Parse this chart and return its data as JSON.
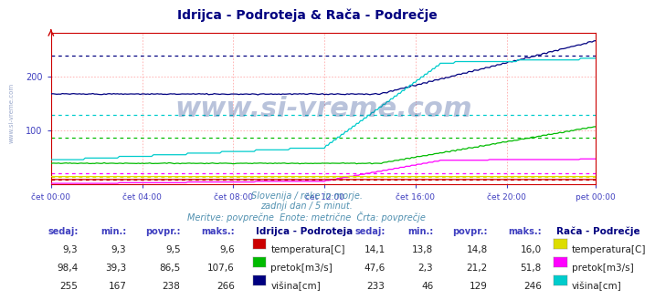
{
  "title": "Idrijca - Podroteja & Rača - Podrečje",
  "title_color": "#000080",
  "subtitle1": "Slovenija / reke in morje.",
  "subtitle2": "zadnji dan / 5 minut.",
  "subtitle3": "Meritve: povprečne  Enote: metrične  Črta: povprečje",
  "bg_color": "#ffffff",
  "plot_bg_color": "#ffffff",
  "watermark": "www.si-vreme.com",
  "tick_color": "#4040c0",
  "n_points": 288,
  "x_tick_labels": [
    "čet 00:00",
    "čet 04:00",
    "čet 08:00",
    "čet 12:00",
    "čet 16:00",
    "čet 20:00",
    "pet 00:00"
  ],
  "x_tick_positions": [
    0,
    48,
    96,
    144,
    192,
    240,
    287
  ],
  "ylim": [
    0,
    280
  ],
  "yticks": [
    100,
    200
  ],
  "idrijca": {
    "label": "Idrijca - Podroteja",
    "temp_color": "#cc0000",
    "pretok_color": "#00bb00",
    "visina_color": "#000080",
    "temp_avg": 9.5,
    "pretok_avg": 86.5,
    "visina_avg": 238,
    "temp_min": 9.3,
    "temp_max": 9.6,
    "temp_sedaj": 9.3,
    "pretok_min": 39.3,
    "pretok_max": 107.6,
    "pretok_sedaj": 98.4,
    "visina_min": 167,
    "visina_max": 266,
    "visina_sedaj": 255
  },
  "raca": {
    "label": "Rača - Podrečje",
    "temp_color": "#dddd00",
    "pretok_color": "#ff00ff",
    "visina_color": "#00cccc",
    "temp_avg": 14.8,
    "pretok_avg": 21.2,
    "visina_avg": 129,
    "temp_min": 13.8,
    "temp_max": 16.0,
    "temp_sedaj": 14.1,
    "pretok_min": 2.3,
    "pretok_max": 51.8,
    "pretok_sedaj": 47.6,
    "visina_min": 46,
    "visina_max": 246,
    "visina_sedaj": 233
  },
  "table_header_color": "#4040c0",
  "col_headers": [
    "sedaj:",
    "min.:",
    "povpr.:",
    "maks.:"
  ],
  "idrijca_rows": [
    [
      "9,3",
      "9,3",
      "9,5",
      "9,6",
      "#cc0000",
      "temperatura[C]"
    ],
    [
      "98,4",
      "39,3",
      "86,5",
      "107,6",
      "#00bb00",
      "pretok[m3/s]"
    ],
    [
      "255",
      "167",
      "238",
      "266",
      "#000080",
      "višina[cm]"
    ]
  ],
  "raca_rows": [
    [
      "14,1",
      "13,8",
      "14,8",
      "16,0",
      "#dddd00",
      "temperatura[C]"
    ],
    [
      "47,6",
      "2,3",
      "21,2",
      "51,8",
      "#ff00ff",
      "pretok[m3/s]"
    ],
    [
      "233",
      "46",
      "129",
      "246",
      "#00cccc",
      "višina[cm]"
    ]
  ]
}
